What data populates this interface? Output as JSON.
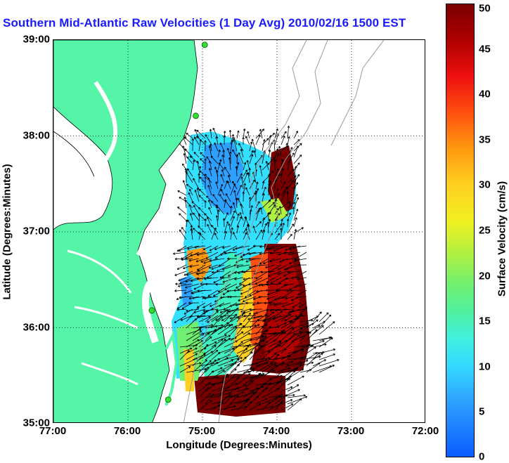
{
  "map": {
    "title": "Southern Mid-Atlantic Raw Velocities (1 Day Avg) 2010/02/16 1500 EST",
    "xlabel": "Longitude (Degrees:Minutes)",
    "ylabel": "Latitude (Degrees:Minutes)",
    "x_ticks": [
      "77:00",
      "76:00",
      "75:00",
      "74:00",
      "73:00",
      "72:00"
    ],
    "y_ticks": [
      "39:00",
      "38:00",
      "37:00",
      "36:00",
      "35:00"
    ],
    "lon_range": [
      -77,
      -72
    ],
    "lat_range": [
      35,
      39
    ],
    "grid": "dotted",
    "land_color": "#55f5a8",
    "station_color": "#33dd33",
    "stations": [
      {
        "lon": -74.97,
        "lat": 38.95
      },
      {
        "lon": -75.09,
        "lat": 38.21
      },
      {
        "lon": -75.68,
        "lat": 36.18
      },
      {
        "lon": -75.46,
        "lat": 35.25
      }
    ]
  },
  "colorbar": {
    "label": "Surface Velocity (cm/s)",
    "ticks": [
      "0",
      "5",
      "10",
      "15",
      "20",
      "25",
      "30",
      "35",
      "40",
      "45",
      "50"
    ],
    "range": [
      0,
      50
    ]
  }
}
